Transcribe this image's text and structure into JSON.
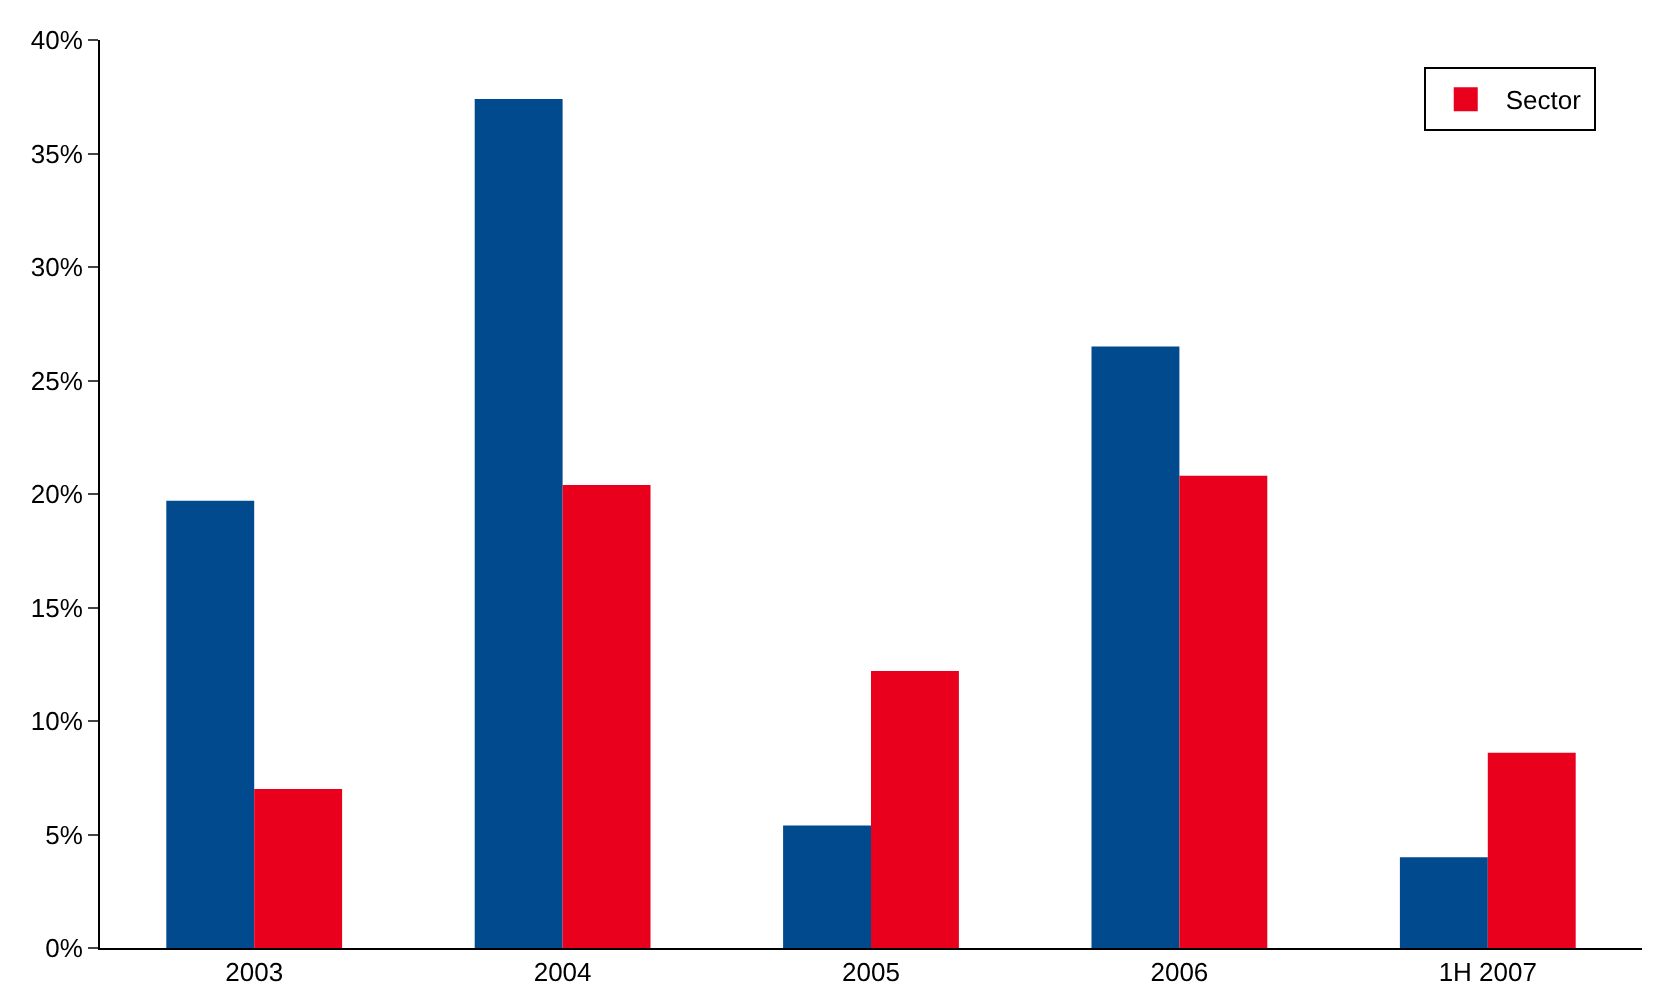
{
  "chart_data": {
    "type": "bar",
    "categories": [
      "2003",
      "2004",
      "2005",
      "2006",
      "1H 2007"
    ],
    "series": [
      {
        "color": "#004a8d",
        "values": [
          19.7,
          37.4,
          5.4,
          26.5,
          4.0
        ]
      },
      {
        "name": "Sector",
        "color": "#e8001c",
        "values": [
          7.0,
          20.4,
          12.2,
          20.8,
          8.6
        ]
      }
    ],
    "ylim": [
      0,
      40
    ],
    "yticks": [
      {
        "value": 0,
        "label": "0%"
      },
      {
        "value": 5,
        "label": "5%"
      },
      {
        "value": 10,
        "label": "10%"
      },
      {
        "value": 15,
        "label": "15%"
      },
      {
        "value": 20,
        "label": "20%"
      },
      {
        "value": 25,
        "label": "25%"
      },
      {
        "value": 30,
        "label": "30%"
      },
      {
        "value": 35,
        "label": "35%"
      },
      {
        "value": 40,
        "label": "40%"
      }
    ],
    "legend": "top right"
  }
}
